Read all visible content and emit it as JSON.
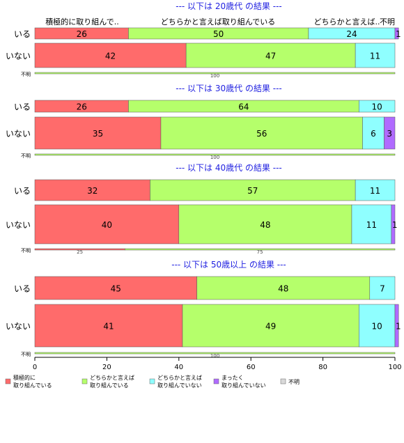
{
  "chart_data": {
    "type": "bar",
    "orientation": "horizontal",
    "stacked": true,
    "xlim": [
      0,
      100
    ],
    "x_ticks": [
      "0",
      "20",
      "40",
      "60",
      "80",
      "100"
    ],
    "top_category_labels": [
      "積極的に取り組んで..",
      "どちらかと言えば取り組んでいる",
      "どちらかと言えば..",
      "不明"
    ],
    "series": [
      {
        "name": "積極的に\n取り組んでいる",
        "color": "#ff6b6b"
      },
      {
        "name": "どちらかと言えば\n取り組んでいる",
        "color": "#b5ff6b"
      },
      {
        "name": "どちらかと言えば\n取り組んでいない",
        "color": "#8fffff"
      },
      {
        "name": "まったく\n取り組んでいない",
        "color": "#b06bff"
      },
      {
        "name": "不明",
        "color": "#d9d9d9"
      }
    ],
    "groups": [
      {
        "title": "--- 以下は 20歳代 の結果 ---",
        "rows": [
          {
            "label": "いる",
            "values": [
              26,
              50,
              24,
              1,
              0
            ]
          },
          {
            "label": "いない",
            "values": [
              42,
              47,
              11,
              0,
              0
            ]
          },
          {
            "label": "不明",
            "values": [
              0,
              100,
              0,
              0,
              0
            ]
          }
        ]
      },
      {
        "title": "--- 以下は 30歳代 の結果 ---",
        "rows": [
          {
            "label": "いる",
            "values": [
              26,
              64,
              10,
              0,
              0
            ]
          },
          {
            "label": "いない",
            "values": [
              35,
              56,
              6,
              3,
              0
            ]
          },
          {
            "label": "不明",
            "values": [
              0,
              100,
              0,
              0,
              0
            ]
          }
        ]
      },
      {
        "title": "--- 以下は 40歳代 の結果 ---",
        "rows": [
          {
            "label": "いる",
            "values": [
              32,
              57,
              11,
              0,
              0
            ]
          },
          {
            "label": "いない",
            "values": [
              40,
              48,
              11,
              1,
              0
            ]
          },
          {
            "label": "不明",
            "values": [
              25,
              75,
              0,
              0,
              0
            ]
          }
        ]
      },
      {
        "title": "--- 以下は 50歳以上 の結果 ---",
        "rows": [
          {
            "label": "いる",
            "values": [
              45,
              48,
              7,
              0,
              0
            ]
          },
          {
            "label": "いない",
            "values": [
              41,
              49,
              10,
              1,
              0
            ]
          },
          {
            "label": "不明",
            "values": [
              0,
              100,
              0,
              0,
              0
            ]
          }
        ]
      }
    ]
  }
}
